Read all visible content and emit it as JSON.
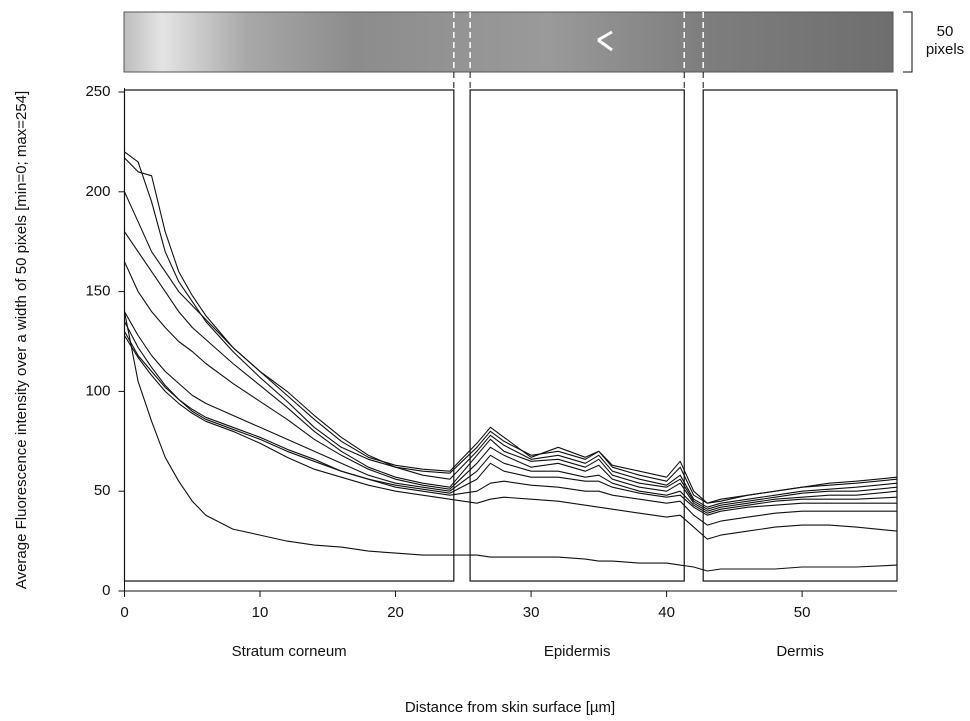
{
  "chart_data": {
    "type": "line",
    "x_label": "Distance from skin surface [µm]",
    "y_label": "Average Fluorescence intensity over a width of 50 pixels [min=0; max=254]",
    "scale_label": [
      "50",
      "pixels"
    ],
    "xlim": [
      0,
      57
    ],
    "ylim": [
      0,
      250
    ],
    "xticks": [
      0,
      10,
      20,
      30,
      40,
      50
    ],
    "yticks": [
      0,
      50,
      100,
      150,
      200,
      250
    ],
    "grid": false,
    "regions": [
      {
        "name": "Stratum corneum",
        "start": 0,
        "end": 24.3
      },
      {
        "name": "Epidermis",
        "start": 25.5,
        "end": 41.3
      },
      {
        "name": "Dermis",
        "start": 42.7,
        "end": 57
      }
    ],
    "region_ylim": [
      5,
      251
    ],
    "x": [
      0,
      1,
      2,
      3,
      4,
      5,
      6,
      8,
      10,
      12,
      14,
      16,
      18,
      20,
      22,
      24,
      26,
      27,
      28,
      30,
      32,
      34,
      35,
      36,
      38,
      40,
      41,
      42,
      43,
      44,
      46,
      48,
      50,
      52,
      54,
      57
    ],
    "series": [
      {
        "color": "#111",
        "values": [
          220,
          215,
          195,
          170,
          155,
          145,
          135,
          120,
          107,
          95,
          82,
          72,
          66,
          62,
          60,
          59,
          72,
          80,
          75,
          68,
          70,
          66,
          70,
          62,
          58,
          55,
          62,
          48,
          44,
          45,
          48,
          50,
          52,
          53,
          54,
          56
        ]
      },
      {
        "color": "#111",
        "values": [
          217,
          210,
          208,
          180,
          160,
          148,
          138,
          122,
          110,
          98,
          86,
          75,
          67,
          63,
          61,
          60,
          74,
          82,
          77,
          67,
          72,
          67,
          70,
          63,
          60,
          57,
          65,
          50,
          44,
          46,
          48,
          50,
          52,
          54,
          55,
          57
        ]
      },
      {
        "color": "#111",
        "values": [
          200,
          185,
          170,
          160,
          150,
          143,
          136,
          122,
          110,
          100,
          88,
          77,
          68,
          62,
          58,
          56,
          70,
          78,
          73,
          66,
          68,
          64,
          68,
          60,
          56,
          53,
          58,
          46,
          42,
          44,
          46,
          48,
          50,
          51,
          52,
          54
        ]
      },
      {
        "color": "#111",
        "values": [
          180,
          170,
          160,
          150,
          140,
          132,
          126,
          114,
          103,
          92,
          80,
          70,
          62,
          57,
          54,
          52,
          68,
          76,
          70,
          65,
          66,
          62,
          66,
          58,
          54,
          52,
          56,
          45,
          41,
          43,
          45,
          47,
          49,
          50,
          50,
          52
        ]
      },
      {
        "color": "#111",
        "values": [
          165,
          150,
          140,
          132,
          125,
          120,
          114,
          104,
          95,
          86,
          76,
          68,
          61,
          56,
          53,
          51,
          64,
          72,
          68,
          62,
          64,
          60,
          63,
          56,
          52,
          50,
          54,
          44,
          40,
          42,
          44,
          46,
          47,
          48,
          48,
          50
        ]
      },
      {
        "color": "#111",
        "values": [
          140,
          128,
          118,
          110,
          104,
          98,
          94,
          88,
          82,
          76,
          70,
          64,
          58,
          54,
          52,
          50,
          60,
          68,
          64,
          60,
          60,
          57,
          58,
          54,
          50,
          48,
          50,
          43,
          39,
          41,
          43,
          45,
          46,
          46,
          46,
          47
        ]
      },
      {
        "color": "#111",
        "values": [
          135,
          122,
          112,
          103,
          96,
          90,
          86,
          81,
          76,
          70,
          65,
          60,
          56,
          53,
          51,
          49,
          56,
          64,
          60,
          57,
          57,
          55,
          55,
          52,
          49,
          47,
          48,
          42,
          38,
          40,
          42,
          43,
          44,
          44,
          44,
          44
        ]
      },
      {
        "color": "#111",
        "values": [
          130,
          118,
          110,
          102,
          96,
          91,
          87,
          82,
          77,
          71,
          66,
          60,
          56,
          52,
          50,
          48,
          50,
          54,
          55,
          53,
          52,
          50,
          50,
          48,
          46,
          44,
          45,
          38,
          33,
          35,
          37,
          39,
          40,
          40,
          40,
          40
        ]
      },
      {
        "color": "#111",
        "values": [
          128,
          117,
          108,
          100,
          94,
          89,
          85,
          80,
          74,
          67,
          61,
          57,
          53,
          50,
          48,
          46,
          44,
          46,
          47,
          46,
          45,
          43,
          42,
          41,
          39,
          37,
          38,
          32,
          26,
          28,
          30,
          32,
          33,
          33,
          32,
          30
        ]
      },
      {
        "color": "#111",
        "values": [
          140,
          105,
          85,
          67,
          55,
          45,
          38,
          31,
          28,
          25,
          23,
          22,
          20,
          19,
          18,
          18,
          18,
          17,
          17,
          17,
          17,
          16,
          15,
          15,
          14,
          14,
          13,
          12,
          10,
          11,
          11,
          11,
          12,
          12,
          12,
          13
        ]
      }
    ]
  }
}
